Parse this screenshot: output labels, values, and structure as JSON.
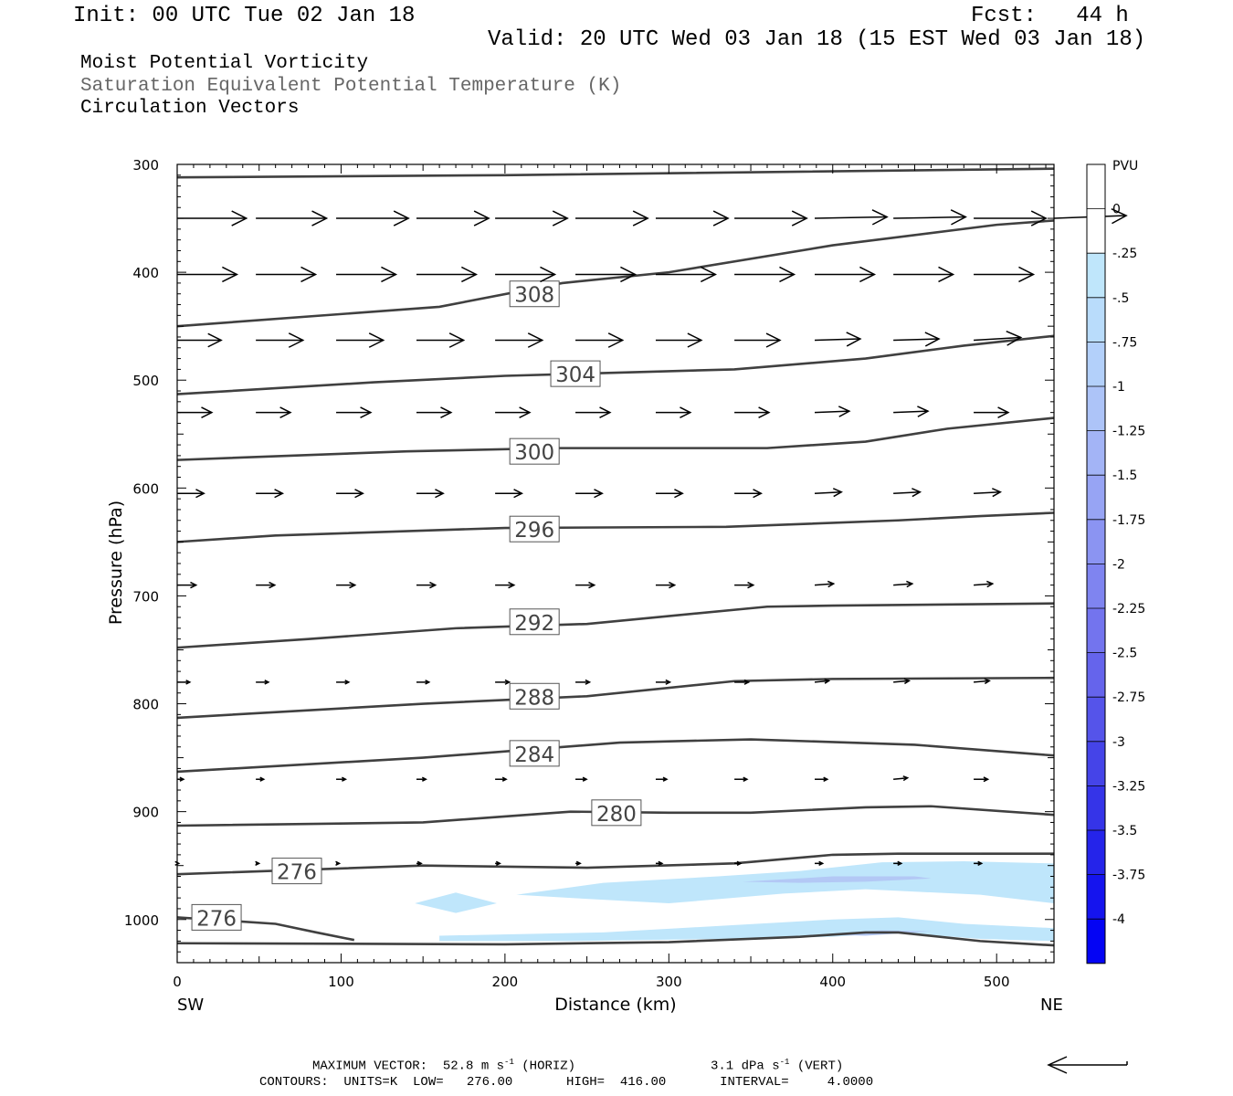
{
  "header": {
    "init": "Init: 00 UTC Tue 02 Jan 18",
    "fcst": "Fcst:   44 h",
    "valid": "Valid: 20 UTC Wed 03 Jan 18 (15 EST Wed 03 Jan 18)",
    "field1": "Moist Potential Vorticity",
    "field2": "Saturation Equivalent Potential Temperature (K)",
    "field3": "Circulation Vectors"
  },
  "footer": {
    "max_vector": "MAXIMUM VECTOR:  52.8 m s",
    "horiz": "(HORIZ)",
    "vert_val": "3.1 dPa s",
    "vert": "(VERT)",
    "sup": "-1",
    "contours": "CONTOURS:  UNITS=K  LOW=   276.00       HIGH=  416.00       INTERVAL=     4.0000"
  },
  "colors": {
    "contour": "#404040",
    "shade_light": "#bfe6fb",
    "shade_mid": "#b3c8f5",
    "vector": "#000000"
  },
  "chart_data": {
    "type": "contour",
    "xlabel": "Distance (km)",
    "ylabel": "Pressure (hPa)",
    "xlim": [
      0,
      535
    ],
    "ylim": [
      1040,
      300
    ],
    "y_log": false,
    "x_ticks": [
      0,
      100,
      200,
      300,
      400,
      500
    ],
    "y_ticks": [
      300,
      400,
      500,
      600,
      700,
      800,
      900,
      1000
    ],
    "x_end_labels": [
      "SW",
      "NE"
    ],
    "colorbar": {
      "unit": "PVU",
      "labels": [
        "0",
        "-.25",
        "-.5",
        "-.75",
        "-1",
        "-1.25",
        "-1.5",
        "-1.75",
        "-2",
        "-2.25",
        "-2.5",
        "-2.75",
        "-3",
        "-3.25",
        "-3.5",
        "-3.75",
        "-4"
      ],
      "colors": [
        "#ffffff",
        "#ffffff",
        "#bfe6fb",
        "#b9dcfb",
        "#b3d0fa",
        "#adc4f8",
        "#a3b4f6",
        "#97a4f4",
        "#8b94f2",
        "#7f84f0",
        "#7374ee",
        "#6564ec",
        "#5554ea",
        "#4544e8",
        "#3534e8",
        "#2524ea",
        "#1514ee",
        "#0404f4"
      ]
    },
    "contours": [
      {
        "label": "",
        "points": [
          [
            0,
            312
          ],
          [
            200,
            310
          ],
          [
            535,
            304
          ]
        ]
      },
      {
        "label": "308",
        "label_at": [
          218,
          420
        ],
        "points": [
          [
            0,
            450
          ],
          [
            160,
            432
          ],
          [
            235,
            410
          ],
          [
            300,
            400
          ],
          [
            400,
            375
          ],
          [
            500,
            356
          ],
          [
            535,
            352
          ]
        ]
      },
      {
        "label": "304",
        "label_at": [
          243,
          494
        ],
        "points": [
          [
            0,
            513
          ],
          [
            120,
            502
          ],
          [
            200,
            496
          ],
          [
            340,
            490
          ],
          [
            420,
            480
          ],
          [
            480,
            468
          ],
          [
            535,
            459
          ]
        ]
      },
      {
        "label": "300",
        "label_at": [
          218,
          566
        ],
        "points": [
          [
            0,
            574
          ],
          [
            140,
            566
          ],
          [
            230,
            563
          ],
          [
            360,
            563
          ],
          [
            420,
            557
          ],
          [
            470,
            545
          ],
          [
            535,
            535
          ]
        ]
      },
      {
        "label": "296",
        "label_at": [
          218,
          638
        ],
        "points": [
          [
            0,
            650
          ],
          [
            60,
            644
          ],
          [
            200,
            637
          ],
          [
            335,
            636
          ],
          [
            440,
            630
          ],
          [
            490,
            626
          ],
          [
            535,
            623
          ]
        ]
      },
      {
        "label": "292",
        "label_at": [
          218,
          724
        ],
        "points": [
          [
            0,
            748
          ],
          [
            80,
            740
          ],
          [
            170,
            730
          ],
          [
            250,
            726
          ],
          [
            360,
            710
          ],
          [
            400,
            709
          ],
          [
            535,
            707
          ]
        ]
      },
      {
        "label": "288",
        "label_at": [
          218,
          793
        ],
        "points": [
          [
            0,
            813
          ],
          [
            150,
            800
          ],
          [
            250,
            793
          ],
          [
            340,
            779
          ],
          [
            400,
            777
          ],
          [
            535,
            776
          ]
        ]
      },
      {
        "label": "284",
        "label_at": [
          218,
          846
        ],
        "points": [
          [
            0,
            863
          ],
          [
            150,
            850
          ],
          [
            270,
            836
          ],
          [
            350,
            833
          ],
          [
            450,
            838
          ],
          [
            535,
            848
          ]
        ]
      },
      {
        "label": "280",
        "label_at": [
          268,
          901
        ],
        "points": [
          [
            0,
            913
          ],
          [
            150,
            910
          ],
          [
            240,
            900
          ],
          [
            300,
            901
          ],
          [
            350,
            901
          ],
          [
            420,
            896
          ],
          [
            460,
            895
          ],
          [
            535,
            903
          ]
        ]
      },
      {
        "label": "276",
        "label_at": [
          73,
          955
        ],
        "points": [
          [
            0,
            958
          ],
          [
            150,
            950
          ],
          [
            250,
            952
          ],
          [
            340,
            948
          ],
          [
            400,
            940
          ],
          [
            440,
            939
          ],
          [
            535,
            939
          ]
        ]
      },
      {
        "label": "276",
        "label_at": [
          24,
          998
        ],
        "points": [
          [
            0,
            998
          ],
          [
            60,
            1004
          ],
          [
            85,
            1012
          ],
          [
            108,
            1019
          ]
        ]
      },
      {
        "label": "",
        "points": [
          [
            0,
            1022
          ],
          [
            200,
            1023
          ],
          [
            300,
            1021
          ],
          [
            380,
            1016
          ],
          [
            420,
            1012
          ],
          [
            440,
            1012
          ],
          [
            490,
            1020
          ],
          [
            535,
            1024
          ]
        ]
      }
    ],
    "pv_shading": [
      {
        "range": [
          -0.5,
          -0.25
        ],
        "points": [
          [
            207,
            977
          ],
          [
            260,
            966
          ],
          [
            330,
            960
          ],
          [
            380,
            955
          ],
          [
            430,
            947
          ],
          [
            480,
            946
          ],
          [
            535,
            948
          ],
          [
            535,
            985
          ],
          [
            490,
            977
          ],
          [
            420,
            972
          ],
          [
            370,
            976
          ],
          [
            300,
            985
          ],
          [
            240,
            980
          ]
        ]
      },
      {
        "range": [
          -0.5,
          -0.25
        ],
        "points": [
          [
            145,
            985
          ],
          [
            170,
            975
          ],
          [
            195,
            985
          ],
          [
            170,
            994
          ]
        ]
      },
      {
        "range": [
          -0.5,
          -0.25
        ],
        "points": [
          [
            160,
            1015
          ],
          [
            260,
            1012
          ],
          [
            330,
            1006
          ],
          [
            400,
            1000
          ],
          [
            440,
            998
          ],
          [
            480,
            1004
          ],
          [
            535,
            1008
          ],
          [
            535,
            1020
          ],
          [
            490,
            1018
          ],
          [
            440,
            1012
          ],
          [
            400,
            1016
          ],
          [
            330,
            1018
          ],
          [
            240,
            1020
          ],
          [
            160,
            1020
          ]
        ]
      },
      {
        "range": [
          -0.75,
          -0.5
        ],
        "points": [
          [
            345,
            965
          ],
          [
            400,
            960
          ],
          [
            450,
            960
          ],
          [
            460,
            962
          ],
          [
            420,
            965
          ],
          [
            380,
            966
          ]
        ]
      },
      {
        "range": [
          -0.75,
          -0.5
        ],
        "points": [
          [
            390,
            1014
          ],
          [
            430,
            1010
          ],
          [
            460,
            1011
          ],
          [
            420,
            1015
          ]
        ]
      }
    ],
    "vector_rows": [
      {
        "p": 350,
        "x": [
          0,
          48,
          97,
          146,
          194,
          243,
          292,
          340,
          389,
          437,
          486,
          535
        ],
        "u": [
          44,
          45,
          46,
          46,
          46,
          46,
          46,
          46,
          46,
          46,
          46,
          46
        ],
        "w": [
          0,
          0,
          0,
          0,
          0,
          0,
          0,
          0,
          -1,
          -1,
          0,
          -2
        ]
      },
      {
        "p": 402,
        "x": [
          0,
          48,
          97,
          146,
          194,
          243,
          292,
          340,
          389,
          437,
          486
        ],
        "u": [
          38,
          38,
          38,
          38,
          38,
          38,
          38,
          38,
          38,
          38,
          38
        ],
        "w": [
          0,
          0,
          0,
          0,
          0,
          0,
          0,
          0,
          0,
          0,
          0
        ]
      },
      {
        "p": 463,
        "x": [
          0,
          48,
          97,
          146,
          194,
          243,
          292,
          340,
          389,
          437,
          486
        ],
        "u": [
          28,
          30,
          30,
          30,
          30,
          30,
          29,
          29,
          29,
          29,
          30
        ],
        "w": [
          0,
          0,
          0,
          0,
          0,
          0,
          0,
          0,
          -1,
          -1,
          -2
        ]
      },
      {
        "p": 530,
        "x": [
          0,
          48,
          97,
          146,
          194,
          243,
          292,
          340,
          389,
          437,
          486
        ],
        "u": [
          22,
          22,
          22,
          22,
          22,
          22,
          22,
          22,
          22,
          22,
          22
        ],
        "w": [
          0,
          0,
          0,
          0,
          0,
          0,
          0,
          0,
          -1,
          -1,
          0
        ]
      },
      {
        "p": 605,
        "x": [
          0,
          48,
          97,
          146,
          194,
          243,
          292,
          340,
          389,
          437,
          486
        ],
        "u": [
          17,
          17,
          17,
          17,
          17,
          17,
          17,
          17,
          17,
          17,
          17
        ],
        "w": [
          0,
          0,
          0,
          0,
          0,
          0,
          0,
          0,
          -1,
          -1,
          -1
        ]
      },
      {
        "p": 690,
        "x": [
          0,
          48,
          97,
          146,
          194,
          243,
          292,
          340,
          389,
          437,
          486
        ],
        "u": [
          12,
          12,
          12,
          12,
          12,
          12,
          12,
          12,
          12,
          12,
          12
        ],
        "w": [
          0,
          0,
          0,
          0,
          0,
          0,
          0,
          0,
          -1,
          -1,
          -1
        ]
      },
      {
        "p": 780,
        "x": [
          0,
          48,
          97,
          146,
          194,
          243,
          292,
          340,
          389,
          437,
          486
        ],
        "u": [
          8,
          8,
          8,
          8,
          9,
          9,
          9,
          9,
          9,
          10,
          10
        ],
        "w": [
          0,
          0,
          0,
          0,
          0,
          0,
          0,
          0,
          -1,
          -1,
          -1
        ]
      },
      {
        "p": 870,
        "x": [
          0,
          48,
          97,
          146,
          194,
          243,
          292,
          340,
          389,
          437,
          486
        ],
        "u": [
          4,
          5,
          6,
          6,
          7,
          7,
          7,
          8,
          8,
          9,
          9
        ],
        "w": [
          0,
          0,
          0,
          0,
          0,
          0,
          0,
          0,
          0,
          -1,
          0
        ]
      },
      {
        "p": 948,
        "x": [
          0,
          48,
          97,
          146,
          194,
          243,
          292,
          340,
          389,
          437,
          486
        ],
        "u": [
          1,
          2,
          2,
          3,
          3,
          3,
          4,
          4,
          5,
          5,
          5
        ],
        "w": [
          0,
          0,
          0,
          0,
          0,
          0,
          0,
          0,
          0,
          0,
          0
        ]
      }
    ]
  }
}
